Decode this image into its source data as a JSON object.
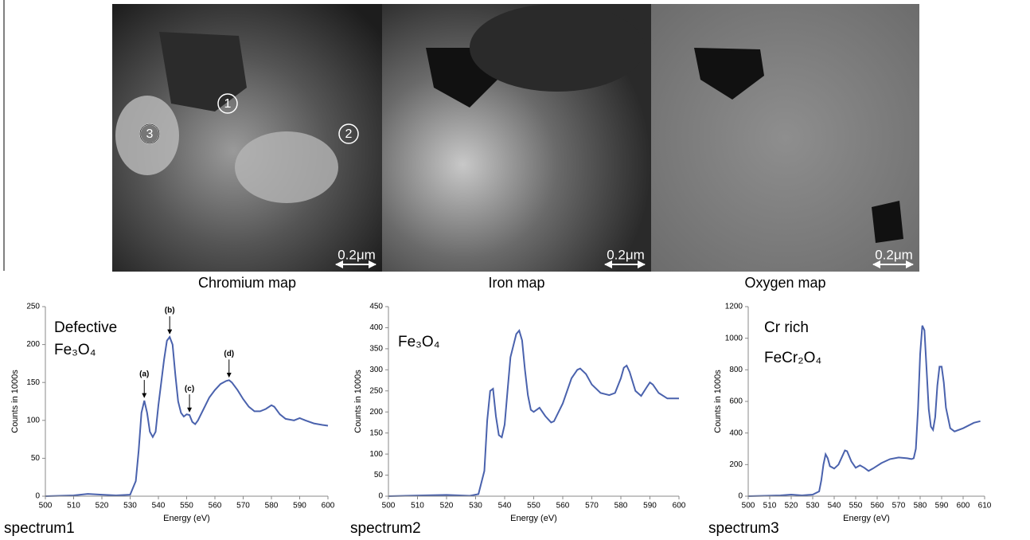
{
  "maps": [
    {
      "caption": "Chromium map",
      "scale": "0.2μm",
      "markers": [
        "1",
        "2",
        "3"
      ]
    },
    {
      "caption": "Iron map",
      "scale": "0.2μm"
    },
    {
      "caption": "Oxygen map",
      "scale": "0.2μm"
    }
  ],
  "chart_data": [
    {
      "type": "line",
      "caption": "spectrum1",
      "annotations": [
        "Defective",
        "Fe₃O₄"
      ],
      "x_label": "Energy (eV)",
      "y_label": "Counts in 1000s",
      "color": "#4a62ad",
      "grid": false,
      "xlim": [
        500,
        600
      ],
      "xticks": [
        500,
        510,
        520,
        530,
        540,
        550,
        560,
        570,
        580,
        590,
        600
      ],
      "ylim": [
        0,
        250
      ],
      "yticks": [
        0,
        50,
        100,
        150,
        200,
        250
      ],
      "x": [
        500,
        510,
        515,
        520,
        525,
        530,
        532,
        533,
        534,
        535,
        536,
        537,
        538,
        539,
        540,
        542,
        543,
        544,
        545,
        546,
        547,
        548,
        549,
        550,
        551,
        552,
        553,
        554,
        556,
        558,
        560,
        562,
        564,
        565,
        566,
        568,
        570,
        572,
        574,
        576,
        578,
        580,
        581,
        583,
        585,
        588,
        590,
        592,
        595,
        598,
        600
      ],
      "values": [
        0,
        1,
        3,
        2,
        1,
        2,
        20,
        60,
        110,
        126,
        110,
        85,
        78,
        85,
        120,
        180,
        205,
        210,
        200,
        160,
        125,
        110,
        105,
        108,
        107,
        98,
        95,
        100,
        115,
        130,
        140,
        148,
        152,
        153,
        150,
        140,
        128,
        118,
        112,
        112,
        115,
        120,
        118,
        108,
        102,
        100,
        103,
        100,
        96,
        94,
        93
      ],
      "peaks": [
        {
          "label": "(a)",
          "x": 535,
          "y": 126
        },
        {
          "label": "(b)",
          "x": 544,
          "y": 210
        },
        {
          "label": "(c)",
          "x": 551,
          "y": 107
        },
        {
          "label": "(d)",
          "x": 565,
          "y": 153
        }
      ]
    },
    {
      "type": "line",
      "caption": "spectrum2",
      "annotations": [
        "Fe₃O₄"
      ],
      "x_label": "Energy (eV)",
      "y_label": "Counts in 1000s",
      "color": "#4a62ad",
      "grid": false,
      "xlim": [
        500,
        600
      ],
      "xticks": [
        500,
        510,
        520,
        530,
        540,
        550,
        560,
        570,
        580,
        590,
        600
      ],
      "ylim": [
        0,
        450
      ],
      "yticks": [
        0,
        50,
        100,
        150,
        200,
        250,
        300,
        350,
        400,
        450
      ],
      "x": [
        500,
        520,
        528,
        531,
        533,
        534,
        535,
        536,
        537,
        538,
        539,
        540,
        541,
        542,
        544,
        545,
        546,
        547,
        548,
        549,
        550,
        552,
        554,
        556,
        557,
        560,
        563,
        565,
        566,
        568,
        570,
        573,
        576,
        578,
        580,
        581,
        582,
        583,
        585,
        587,
        589,
        590,
        591,
        593,
        596,
        600
      ],
      "values": [
        0,
        3,
        1,
        5,
        60,
        180,
        250,
        255,
        190,
        145,
        140,
        170,
        250,
        330,
        385,
        393,
        370,
        300,
        240,
        205,
        200,
        210,
        190,
        175,
        178,
        220,
        280,
        300,
        303,
        290,
        265,
        245,
        240,
        245,
        280,
        305,
        310,
        295,
        250,
        238,
        260,
        270,
        265,
        245,
        232,
        232
      ]
    },
    {
      "type": "line",
      "caption": "spectrum3",
      "annotations": [
        "Cr rich",
        "FeCr₂O₄"
      ],
      "x_label": "Energy (eV)",
      "y_label": "Counts in 1000s",
      "color": "#4a62ad",
      "grid": false,
      "xlim": [
        500,
        610
      ],
      "xticks": [
        500,
        510,
        520,
        530,
        540,
        550,
        560,
        570,
        580,
        590,
        600,
        610
      ],
      "ylim": [
        0,
        1200
      ],
      "yticks": [
        0,
        200,
        400,
        600,
        800,
        1000,
        1200
      ],
      "x": [
        500,
        515,
        520,
        525,
        530,
        533,
        534,
        535,
        536,
        537,
        538,
        540,
        542,
        544,
        545,
        546,
        548,
        550,
        552,
        554,
        556,
        558,
        562,
        566,
        570,
        574,
        576,
        577,
        578,
        579,
        580,
        581,
        582,
        583,
        584,
        585,
        586,
        587,
        588,
        589,
        590,
        591,
        592,
        594,
        596,
        600,
        605,
        608
      ],
      "values": [
        0,
        5,
        10,
        5,
        10,
        30,
        100,
        200,
        265,
        240,
        190,
        175,
        200,
        260,
        290,
        285,
        220,
        180,
        195,
        180,
        160,
        175,
        210,
        235,
        245,
        240,
        235,
        240,
        300,
        550,
        900,
        1080,
        1050,
        800,
        550,
        440,
        420,
        500,
        700,
        820,
        820,
        720,
        560,
        430,
        410,
        430,
        465,
        475
      ]
    }
  ]
}
